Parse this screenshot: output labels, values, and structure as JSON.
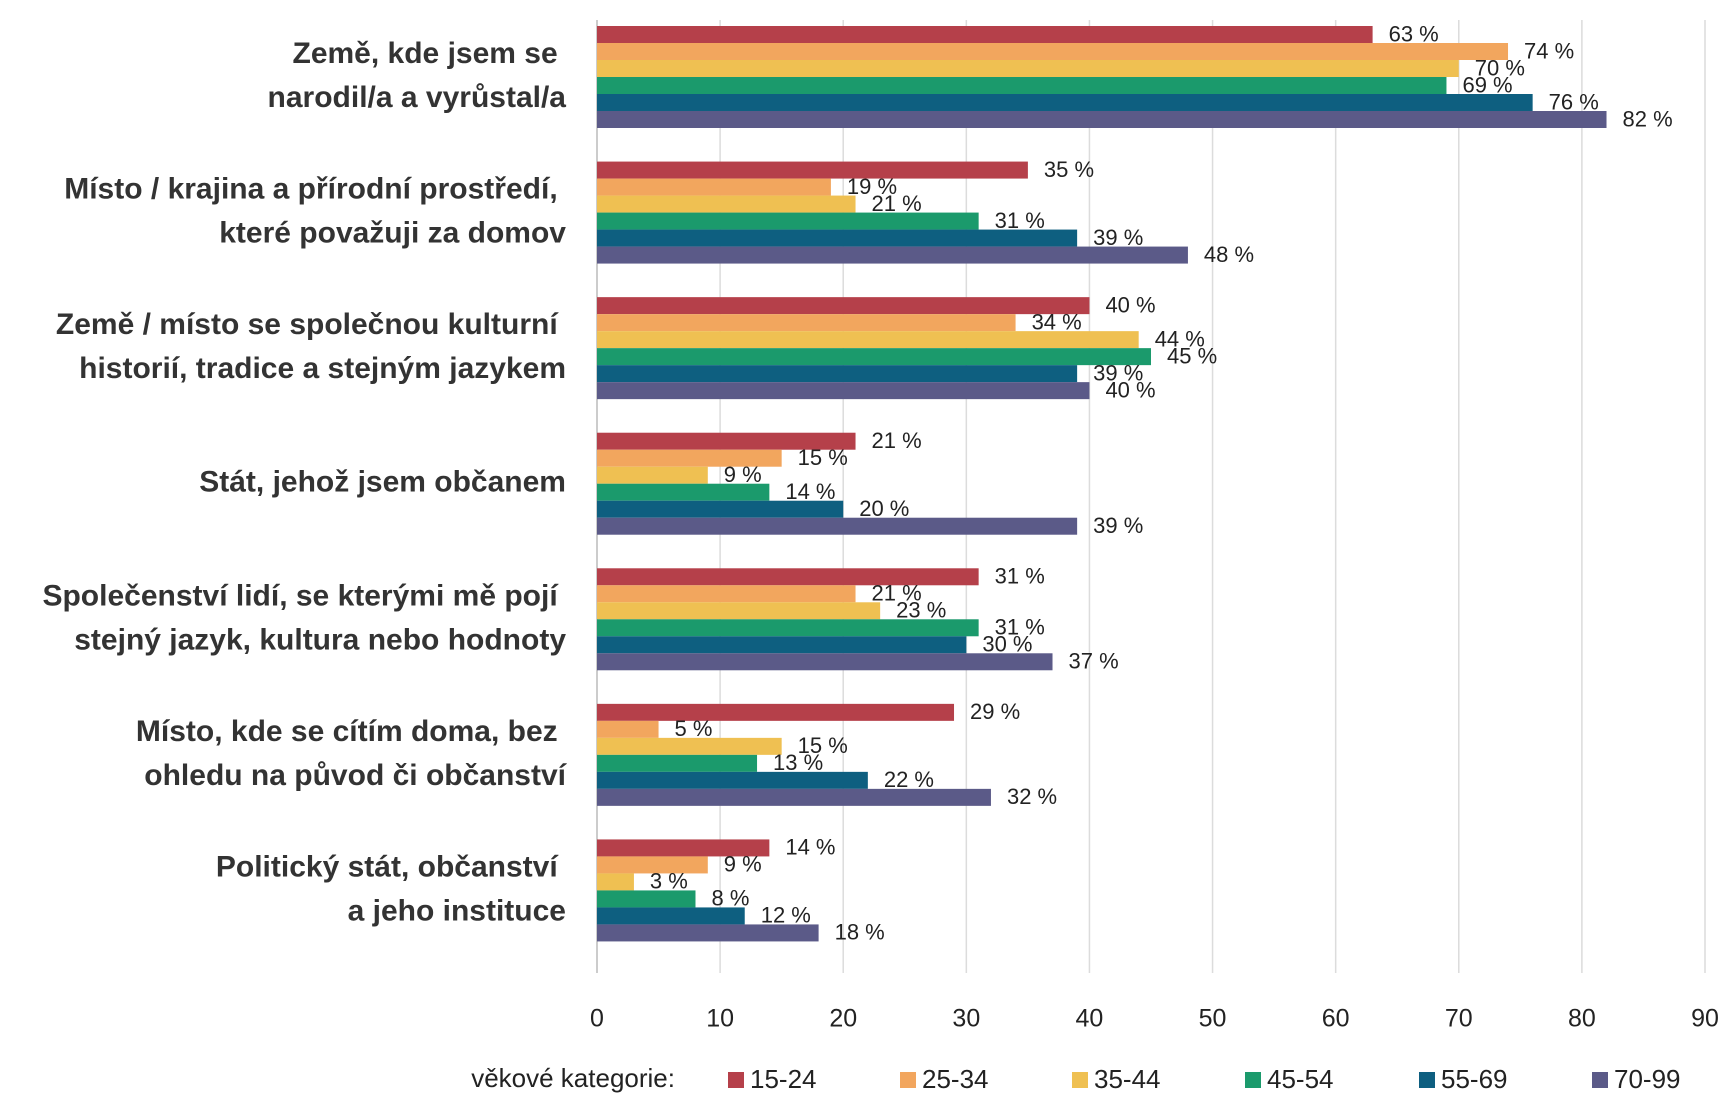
{
  "chart_data": {
    "type": "bar",
    "orientation": "horizontal",
    "categories": [
      "Země, kde jsem se\nnarodil/a a vyrůstal/a",
      "Místo / krajina a přírodní prostředí,\nkteré považuji za domov",
      "Země / místo se společnou kulturní\nhistorií, tradice a stejným jazykem",
      "Stát, jehož jsem občanem",
      "Společenství lidí, se kterými mě pojí\nstejný jazyk, kultura nebo hodnoty",
      "Místo, kde se cítím doma, bez\nohledu na původ či občanství",
      "Politický stát, občanství\na jeho instituce"
    ],
    "series": [
      {
        "name": "15-24",
        "color": "#b5404a",
        "values": [
          63,
          35,
          40,
          21,
          31,
          29,
          14
        ],
        "value_labels": [
          "63 %",
          "35 %",
          "40 %",
          "21 %",
          "31 %",
          "29 %",
          "14 %"
        ]
      },
      {
        "name": "25-34",
        "color": "#f2a65e",
        "values": [
          74,
          19,
          34,
          15,
          21,
          5,
          9
        ],
        "value_labels": [
          "74 %",
          "19 %",
          "34 %",
          "15 %",
          "21 %",
          "5 %",
          "9 %"
        ]
      },
      {
        "name": "35-44",
        "color": "#efc052",
        "values": [
          70,
          21,
          44,
          9,
          23,
          15,
          3
        ],
        "value_labels": [
          "70 %",
          "21 %",
          "44 %",
          "9 %",
          "23 %",
          "15 %",
          "3 %"
        ]
      },
      {
        "name": "45-54",
        "color": "#1b9a6c",
        "values": [
          69,
          31,
          45,
          14,
          31,
          13,
          8
        ],
        "value_labels": [
          "69 %",
          "31 %",
          "45 %",
          "14 %",
          "31 %",
          "13 %",
          "8 %"
        ]
      },
      {
        "name": "55-69",
        "color": "#0e5f80",
        "values": [
          76,
          39,
          39,
          20,
          30,
          22,
          12
        ],
        "value_labels": [
          "76 %",
          "39 %",
          "39 %",
          "20 %",
          "30 %",
          "22 %",
          "12 %"
        ]
      },
      {
        "name": "70-99",
        "color": "#5b5a88",
        "values": [
          82,
          48,
          40,
          39,
          37,
          32,
          18
        ],
        "value_labels": [
          "82 %",
          "48 %",
          "40 %",
          "39 %",
          "37 %",
          "32 %",
          "18 %"
        ]
      }
    ],
    "xlim": [
      0,
      90
    ],
    "xticks": [
      0,
      10,
      20,
      30,
      40,
      50,
      60,
      70,
      80,
      90
    ],
    "grid": true,
    "legend_title": "věkové kategorie:",
    "legend_position": "bottom"
  }
}
